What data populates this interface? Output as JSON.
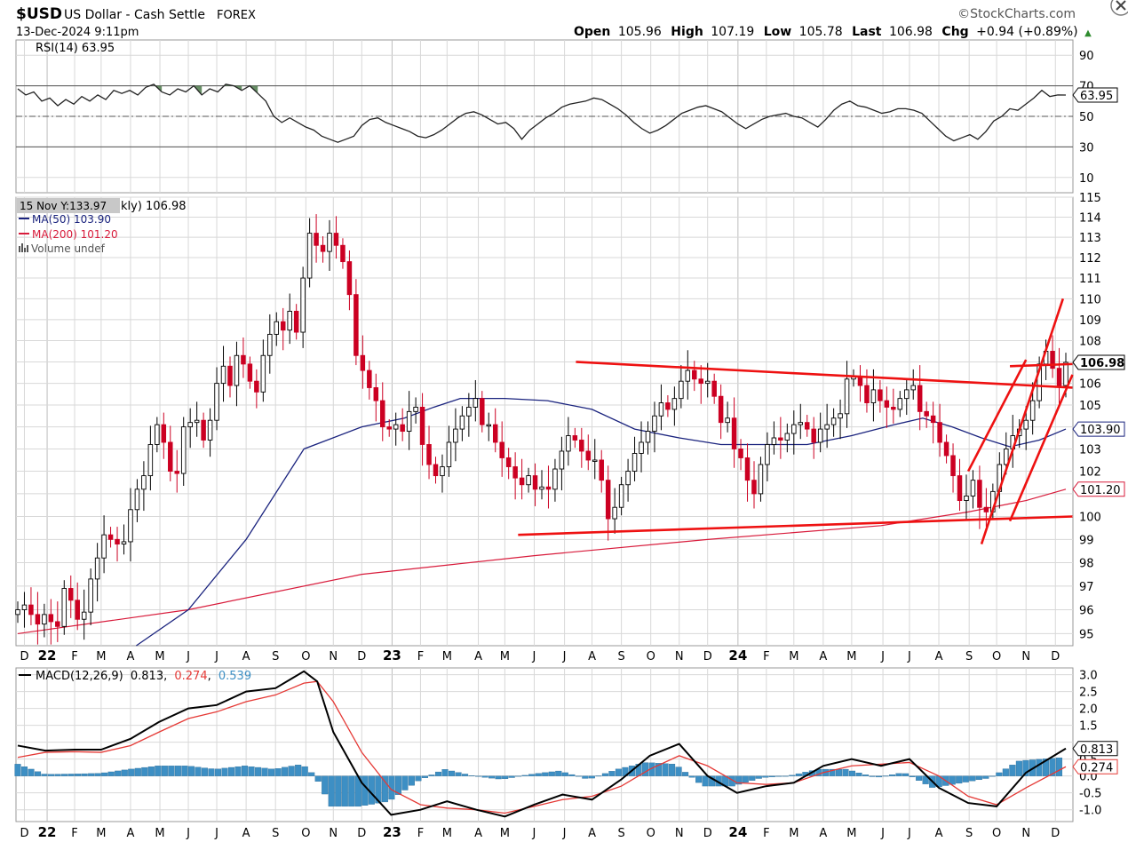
{
  "header": {
    "symbol": "$USD",
    "name": "US Dollar - Cash Settle",
    "exchange": "FOREX",
    "date": "13-Dec-2024 9:11pm",
    "brand": "©StockCharts.com",
    "quote": {
      "open_label": "Open",
      "open": "105.96",
      "high_label": "High",
      "high": "107.19",
      "low_label": "Low",
      "low": "105.78",
      "last_label": "Last",
      "last": "106.98",
      "chg_label": "Chg",
      "chg": "+0.94 (+0.89%)",
      "up_arrow": "▲"
    }
  },
  "colors": {
    "up": "#ffffff",
    "down": "#cc0022",
    "candle_outline": "#000000",
    "ma50": "#1a237e",
    "ma200": "#d81b3b",
    "trendline": "#ee1111",
    "rsi_fill": "#4c7a4a",
    "macd_hist": "#3d8fc4",
    "signal": "#e53935",
    "grid": "#d8d8d8",
    "last_badge": "#ffee33"
  },
  "chart_data": [
    {
      "type": "line",
      "title": "RSI(14) 63.95",
      "series": [
        {
          "name": "RSI(14)",
          "values": [
            68,
            64,
            66,
            60,
            62,
            57,
            61,
            58,
            63,
            60,
            64,
            61,
            67,
            65,
            67,
            64,
            69,
            71,
            66,
            64,
            68,
            66,
            70,
            64,
            68,
            66,
            71,
            70,
            67,
            70,
            65,
            60,
            50,
            46,
            49,
            46,
            43,
            41,
            37,
            35,
            33,
            35,
            37,
            44,
            48,
            49,
            46,
            44,
            42,
            40,
            37,
            36,
            38,
            41,
            45,
            49,
            52,
            53,
            51,
            48,
            45,
            46,
            42,
            35,
            41,
            45,
            49,
            52,
            56,
            58,
            59,
            60,
            62,
            61,
            58,
            55,
            51,
            46,
            42,
            39,
            41,
            44,
            48,
            52,
            54,
            56,
            57,
            55,
            53,
            49,
            45,
            42,
            45,
            48,
            50,
            51,
            52,
            50,
            49,
            46,
            43,
            48,
            54,
            58,
            60,
            57,
            56,
            54,
            52,
            53,
            55,
            55,
            54,
            52,
            47,
            42,
            37,
            34,
            36,
            38,
            35,
            40,
            47,
            50,
            55,
            54,
            58,
            62,
            67,
            63,
            64,
            63.95
          ]
        }
      ],
      "ylim": [
        0,
        100
      ],
      "ticks": [
        "90",
        "70",
        "50",
        "30",
        "10"
      ],
      "levels": [
        70,
        50,
        30
      ],
      "last_label": "63.95"
    },
    {
      "type": "candlestick",
      "legend": {
        "tooltip": "15 Nov Y:133.97",
        "title_tail": "kly) 106.98",
        "ma50": "MA(50) 103.90",
        "ma200": "MA(200) 101.20",
        "volume": "Volume undef"
      },
      "ylim": [
        94.5,
        115
      ],
      "yticks": [
        "115",
        "114",
        "113",
        "112",
        "111",
        "110",
        "109",
        "108",
        "107",
        "106",
        "105",
        "104",
        "103",
        "102",
        "101",
        "100",
        "99",
        "98",
        "97",
        "96",
        "95"
      ],
      "yticks_shown": [
        "115",
        "114",
        "113",
        "112",
        "111",
        "110",
        "109",
        "108",
        "106",
        "105",
        "103",
        "102",
        "100",
        "99",
        "98",
        "97",
        "96",
        "95"
      ],
      "log_scale": true,
      "close": [
        96.0,
        96.2,
        95.8,
        95.4,
        95.8,
        95.5,
        95.3,
        96.9,
        96.4,
        95.6,
        95.9,
        97.3,
        98.2,
        99.2,
        99.0,
        98.8,
        98.9,
        100.3,
        101.2,
        101.8,
        103.2,
        104.1,
        103.3,
        102.0,
        101.9,
        104.0,
        104.2,
        104.3,
        103.4,
        104.3,
        106.0,
        106.8,
        105.9,
        107.3,
        106.9,
        106.1,
        105.6,
        107.3,
        108.3,
        108.9,
        108.5,
        109.4,
        108.4,
        111.0,
        113.2,
        112.6,
        112.3,
        113.2,
        112.6,
        111.8,
        110.2,
        107.3,
        106.6,
        105.8,
        105.2,
        104.0,
        103.9,
        104.1,
        103.8,
        104.7,
        104.9,
        103.2,
        102.3,
        101.8,
        102.2,
        103.3,
        103.9,
        104.5,
        104.9,
        105.3,
        104.1,
        104.1,
        103.3,
        102.6,
        102.2,
        101.7,
        101.4,
        101.8,
        101.2,
        101.3,
        101.2,
        102.1,
        102.9,
        103.6,
        103.4,
        102.9,
        102.5,
        102.5,
        101.6,
        99.9,
        100.4,
        101.4,
        102.0,
        102.8,
        103.3,
        103.8,
        104.5,
        105.1,
        104.8,
        105.3,
        106.1,
        106.6,
        106.2,
        106.0,
        106.1,
        105.4,
        104.2,
        104.4,
        103.0,
        102.6,
        101.6,
        101.0,
        102.3,
        103.2,
        103.5,
        103.4,
        103.7,
        104.1,
        104.2,
        103.9,
        103.3,
        103.9,
        104.1,
        104.4,
        104.6,
        106.2,
        106.3,
        105.9,
        105.1,
        105.7,
        105.2,
        104.9,
        104.8,
        105.3,
        105.7,
        105.9,
        104.7,
        104.5,
        104.2,
        103.3,
        102.7,
        101.8,
        100.7,
        100.9,
        101.6,
        100.4,
        100.2,
        101.1,
        102.3,
        103.0,
        103.6,
        103.9,
        104.3,
        105.2,
        106.9,
        107.5,
        106.7,
        105.9,
        106.98
      ],
      "ma50": [
        {
          "d": "2022-04-07",
          "v": 94.5
        },
        {
          "d": "2022-06-01",
          "v": 96.0
        },
        {
          "d": "2022-08-01",
          "v": 99.0
        },
        {
          "d": "2022-10-01",
          "v": 103.0
        },
        {
          "d": "2022-12-01",
          "v": 104.0
        },
        {
          "d": "2023-01-15",
          "v": 104.4
        },
        {
          "d": "2023-02-15",
          "v": 104.9
        },
        {
          "d": "2023-03-15",
          "v": 105.3
        },
        {
          "d": "2023-05-01",
          "v": 105.3
        },
        {
          "d": "2023-06-15",
          "v": 105.2
        },
        {
          "d": "2023-08-01",
          "v": 104.8
        },
        {
          "d": "2023-09-15",
          "v": 103.9
        },
        {
          "d": "2023-11-01",
          "v": 103.5
        },
        {
          "d": "2023-12-15",
          "v": 103.2
        },
        {
          "d": "2024-02-01",
          "v": 103.2
        },
        {
          "d": "2024-03-15",
          "v": 103.2
        },
        {
          "d": "2024-05-01",
          "v": 103.6
        },
        {
          "d": "2024-06-15",
          "v": 104.1
        },
        {
          "d": "2024-07-15",
          "v": 104.4
        },
        {
          "d": "2024-08-15",
          "v": 104.0
        },
        {
          "d": "2024-09-15",
          "v": 103.5
        },
        {
          "d": "2024-10-15",
          "v": 103.1
        },
        {
          "d": "2024-11-15",
          "v": 103.4
        },
        {
          "d": "2024-12-13",
          "v": 103.9
        }
      ],
      "ma200": [
        {
          "d": "2021-12-03",
          "v": 95.0
        },
        {
          "d": "2022-06-01",
          "v": 96.0
        },
        {
          "d": "2022-12-01",
          "v": 97.5
        },
        {
          "d": "2023-06-01",
          "v": 98.3
        },
        {
          "d": "2023-12-01",
          "v": 99.0
        },
        {
          "d": "2024-06-01",
          "v": 99.6
        },
        {
          "d": "2024-09-01",
          "v": 100.2
        },
        {
          "d": "2024-11-01",
          "v": 100.7
        },
        {
          "d": "2024-12-13",
          "v": 101.2
        }
      ],
      "trendlines": [
        [
          {
            "d": "2023-05-15",
            "v": 99.2
          },
          {
            "d": "2024-12-20",
            "v": 100.0
          }
        ],
        [
          {
            "d": "2023-07-15",
            "v": 107.0
          },
          {
            "d": "2024-12-20",
            "v": 105.8
          }
        ],
        [
          {
            "d": "2024-09-15",
            "v": 98.8
          },
          {
            "d": "2024-12-10",
            "v": 110.0
          }
        ],
        [
          {
            "d": "2024-09-01",
            "v": 102.0
          },
          {
            "d": "2024-11-01",
            "v": 107.1
          }
        ],
        [
          {
            "d": "2024-10-15",
            "v": 99.8
          },
          {
            "d": "2024-12-20",
            "v": 106.4
          }
        ],
        [
          {
            "d": "2024-10-15",
            "v": 106.8
          },
          {
            "d": "2024-12-20",
            "v": 106.9
          }
        ]
      ],
      "last_ma50": "103.90",
      "last_ma200": "101.20",
      "last_close": "106.98"
    },
    {
      "type": "line",
      "title": "MACD(12,26,9)",
      "legend": {
        "name": "MACD(12,26,9)",
        "macd": "0.813",
        "signal": "0.274",
        "hist": "0.539"
      },
      "ylim": [
        -1.35,
        3.2
      ],
      "ticks": [
        "3.0",
        "2.5",
        "2.0",
        "1.5",
        "1.0",
        "0.5",
        "0.0",
        "-0.5",
        "-1.0"
      ],
      "ticks_shown": [
        "3.0",
        "2.5",
        "2.0",
        "1.5",
        "0.5",
        "0.0",
        "-0.5",
        "-1.0"
      ],
      "series": [
        {
          "name": "MACD",
          "points": [
            [
              "2021-12-03",
              0.9
            ],
            [
              "2022-01-01",
              0.75
            ],
            [
              "2022-02-01",
              0.78
            ],
            [
              "2022-03-01",
              0.78
            ],
            [
              "2022-04-01",
              1.1
            ],
            [
              "2022-05-01",
              1.6
            ],
            [
              "2022-06-01",
              2.0
            ],
            [
              "2022-07-01",
              2.1
            ],
            [
              "2022-08-01",
              2.5
            ],
            [
              "2022-09-01",
              2.6
            ],
            [
              "2022-10-01",
              3.1
            ],
            [
              "2022-10-15",
              2.8
            ],
            [
              "2022-11-01",
              1.3
            ],
            [
              "2022-12-01",
              -0.2
            ],
            [
              "2023-01-01",
              -1.15
            ],
            [
              "2023-02-01",
              -1.0
            ],
            [
              "2023-03-01",
              -0.75
            ],
            [
              "2023-04-01",
              -1.0
            ],
            [
              "2023-05-01",
              -1.2
            ],
            [
              "2023-06-01",
              -0.85
            ],
            [
              "2023-07-01",
              -0.55
            ],
            [
              "2023-08-01",
              -0.7
            ],
            [
              "2023-09-01",
              -0.1
            ],
            [
              "2023-10-01",
              0.6
            ],
            [
              "2023-11-01",
              0.95
            ],
            [
              "2023-12-01",
              0.0
            ],
            [
              "2024-01-01",
              -0.5
            ],
            [
              "2024-02-01",
              -0.3
            ],
            [
              "2024-03-01",
              -0.2
            ],
            [
              "2024-04-01",
              0.3
            ],
            [
              "2024-05-01",
              0.5
            ],
            [
              "2024-06-01",
              0.3
            ],
            [
              "2024-07-01",
              0.5
            ],
            [
              "2024-08-01",
              -0.35
            ],
            [
              "2024-09-01",
              -0.8
            ],
            [
              "2024-10-01",
              -0.9
            ],
            [
              "2024-11-01",
              0.1
            ],
            [
              "2024-12-13",
              0.813
            ]
          ]
        },
        {
          "name": "Signal",
          "points": [
            [
              "2021-12-03",
              0.55
            ],
            [
              "2022-01-01",
              0.7
            ],
            [
              "2022-02-01",
              0.72
            ],
            [
              "2022-03-01",
              0.7
            ],
            [
              "2022-04-01",
              0.9
            ],
            [
              "2022-05-01",
              1.3
            ],
            [
              "2022-06-01",
              1.7
            ],
            [
              "2022-07-01",
              1.9
            ],
            [
              "2022-08-01",
              2.2
            ],
            [
              "2022-09-01",
              2.4
            ],
            [
              "2022-10-01",
              2.75
            ],
            [
              "2022-10-15",
              2.8
            ],
            [
              "2022-11-01",
              2.2
            ],
            [
              "2022-12-01",
              0.7
            ],
            [
              "2023-01-01",
              -0.4
            ],
            [
              "2023-02-01",
              -0.85
            ],
            [
              "2023-03-01",
              -0.95
            ],
            [
              "2023-04-01",
              -1.0
            ],
            [
              "2023-05-01",
              -1.1
            ],
            [
              "2023-06-01",
              -0.9
            ],
            [
              "2023-07-01",
              -0.7
            ],
            [
              "2023-08-01",
              -0.6
            ],
            [
              "2023-09-01",
              -0.3
            ],
            [
              "2023-10-01",
              0.2
            ],
            [
              "2023-11-01",
              0.6
            ],
            [
              "2023-12-01",
              0.3
            ],
            [
              "2024-01-01",
              -0.2
            ],
            [
              "2024-02-01",
              -0.25
            ],
            [
              "2024-03-01",
              -0.2
            ],
            [
              "2024-04-01",
              0.1
            ],
            [
              "2024-05-01",
              0.3
            ],
            [
              "2024-06-01",
              0.35
            ],
            [
              "2024-07-01",
              0.4
            ],
            [
              "2024-08-01",
              0.0
            ],
            [
              "2024-09-01",
              -0.6
            ],
            [
              "2024-10-01",
              -0.85
            ],
            [
              "2024-11-01",
              -0.35
            ],
            [
              "2024-12-13",
              0.274
            ]
          ]
        }
      ],
      "last_macd": "0.813",
      "last_signal": "0.274"
    }
  ],
  "x_axis": {
    "labels": [
      {
        "d": "2021-12-10",
        "t": "D"
      },
      {
        "d": "2022-01-03",
        "t": "22",
        "bold": true
      },
      {
        "d": "2022-02-01",
        "t": "F"
      },
      {
        "d": "2022-03-01",
        "t": "M"
      },
      {
        "d": "2022-04-01",
        "t": "A"
      },
      {
        "d": "2022-05-02",
        "t": "M"
      },
      {
        "d": "2022-06-01",
        "t": "J"
      },
      {
        "d": "2022-07-01",
        "t": "J"
      },
      {
        "d": "2022-08-01",
        "t": "A"
      },
      {
        "d": "2022-09-01",
        "t": "S"
      },
      {
        "d": "2022-10-03",
        "t": "O"
      },
      {
        "d": "2022-11-01",
        "t": "N"
      },
      {
        "d": "2022-12-01",
        "t": "D"
      },
      {
        "d": "2023-01-02",
        "t": "23",
        "bold": true
      },
      {
        "d": "2023-02-01",
        "t": "F"
      },
      {
        "d": "2023-03-01",
        "t": "M"
      },
      {
        "d": "2023-04-03",
        "t": "A"
      },
      {
        "d": "2023-05-01",
        "t": "M"
      },
      {
        "d": "2023-06-01",
        "t": "J"
      },
      {
        "d": "2023-07-03",
        "t": "J"
      },
      {
        "d": "2023-08-01",
        "t": "A"
      },
      {
        "d": "2023-09-01",
        "t": "S"
      },
      {
        "d": "2023-10-02",
        "t": "O"
      },
      {
        "d": "2023-11-01",
        "t": "N"
      },
      {
        "d": "2023-12-01",
        "t": "D"
      },
      {
        "d": "2024-01-02",
        "t": "24",
        "bold": true
      },
      {
        "d": "2024-02-01",
        "t": "F"
      },
      {
        "d": "2024-03-01",
        "t": "M"
      },
      {
        "d": "2024-04-01",
        "t": "A"
      },
      {
        "d": "2024-05-01",
        "t": "M"
      },
      {
        "d": "2024-06-03",
        "t": "J"
      },
      {
        "d": "2024-07-01",
        "t": "J"
      },
      {
        "d": "2024-08-01",
        "t": "A"
      },
      {
        "d": "2024-09-02",
        "t": "S"
      },
      {
        "d": "2024-10-01",
        "t": "O"
      },
      {
        "d": "2024-11-01",
        "t": "N"
      },
      {
        "d": "2024-12-02",
        "t": "D"
      }
    ],
    "start": "2021-12-03",
    "end": "2024-12-13"
  }
}
